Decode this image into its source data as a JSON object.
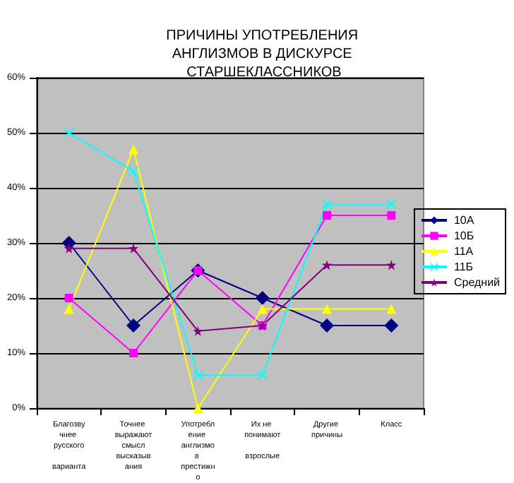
{
  "chart_data": {
    "type": "line",
    "title": "ПРИЧИНЫ УПОТРЕБЛЕНИЯ АНГЛИЗМОВ В ДИСКУРСЕ СТАРШЕКЛАССНИКОВ",
    "categories": [
      "Благозвучнее русского варианта",
      "Точнее выражают смысл высказывания",
      "Употребление англизмов престижно",
      "Их не понимают взрослые",
      "Другие причины",
      "Класс"
    ],
    "series": [
      {
        "name": "10А",
        "color": "#000080",
        "marker": "diamond",
        "values": [
          30,
          15,
          25,
          20,
          15,
          15
        ]
      },
      {
        "name": "10Б",
        "color": "#ff00ff",
        "marker": "square",
        "values": [
          20,
          10,
          25,
          15,
          35,
          35
        ]
      },
      {
        "name": "11А",
        "color": "#ffff00",
        "marker": "triangle",
        "values": [
          18,
          47,
          0,
          18,
          18,
          18
        ]
      },
      {
        "name": "11Б",
        "color": "#00ffff",
        "marker": "cross",
        "values": [
          50,
          43,
          6,
          6,
          37,
          37
        ]
      },
      {
        "name": "Средний",
        "color": "#800080",
        "marker": "star",
        "values": [
          29,
          29,
          14,
          15,
          26,
          26
        ]
      }
    ],
    "ylim": [
      0,
      60
    ],
    "yticks": [
      {
        "value": 0,
        "label": "0%"
      },
      {
        "value": 10,
        "label": "10%"
      },
      {
        "value": 20,
        "label": "20%"
      },
      {
        "value": 30,
        "label": "30%"
      },
      {
        "value": 40,
        "label": "40%"
      },
      {
        "value": 50,
        "label": "50%"
      },
      {
        "value": 60,
        "label": "60%"
      }
    ],
    "grid": "y",
    "legend": "right",
    "line_style": "solid"
  }
}
